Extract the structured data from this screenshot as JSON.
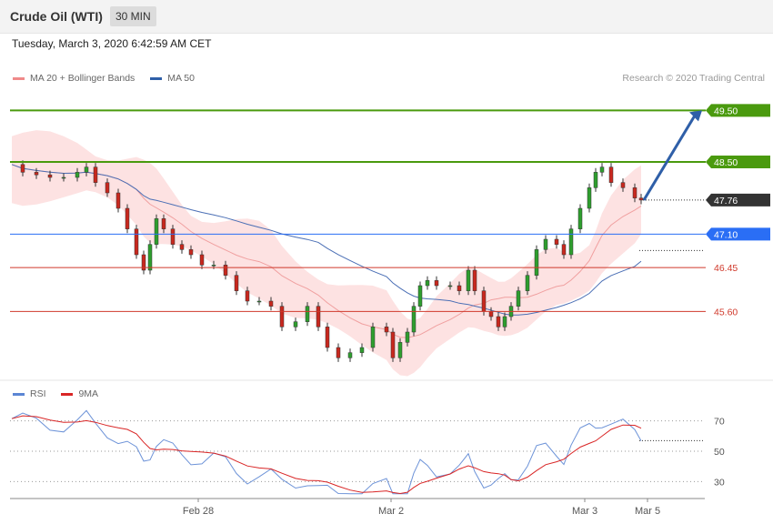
{
  "header": {
    "title": "Crude Oil (WTI)",
    "timeframe": "30 MIN"
  },
  "date": "Tuesday, March 3, 2020 6:42:59 AM CET",
  "legend": [
    {
      "label": "MA 20 + Bollinger Bands",
      "color": "#f08a8a"
    },
    {
      "label": "MA 50",
      "color": "#2f5fa8"
    }
  ],
  "credit": "Research © 2020 Trading Central",
  "rsi_legend": [
    {
      "label": "RSI",
      "color": "#5b86d4"
    },
    {
      "label": "9MA",
      "color": "#d92525"
    }
  ],
  "chart_data": [
    {
      "type": "line",
      "series": [
        {
          "name": "Crude Oil (WTI)",
          "last": 47.76
        }
      ],
      "price_levels": [
        {
          "value": 49.5,
          "label": "49.50",
          "style": "resistance",
          "color": "#4a9a0e"
        },
        {
          "value": 48.5,
          "label": "48.50",
          "style": "resistance",
          "color": "#4a9a0e"
        },
        {
          "value": 47.76,
          "label": "47.76",
          "style": "last",
          "color": "#333333"
        },
        {
          "value": 47.1,
          "label": "47.10",
          "style": "pivot",
          "color": "#2a6ef5"
        },
        {
          "value": 46.45,
          "label": "46.45",
          "style": "support",
          "color": "#d0392b"
        },
        {
          "value": 45.6,
          "label": "45.60",
          "style": "support",
          "color": "#d0392b"
        }
      ],
      "xlabels": [
        "Feb 28",
        "Mar 2",
        "Mar 3",
        "Mar 5"
      ],
      "ylim": [
        44.3,
        50.3
      ]
    },
    {
      "type": "line",
      "series": [
        {
          "name": "RSI"
        },
        {
          "name": "9MA"
        }
      ],
      "ylim": [
        20,
        80
      ],
      "yticks": [
        70,
        50,
        30
      ]
    }
  ]
}
